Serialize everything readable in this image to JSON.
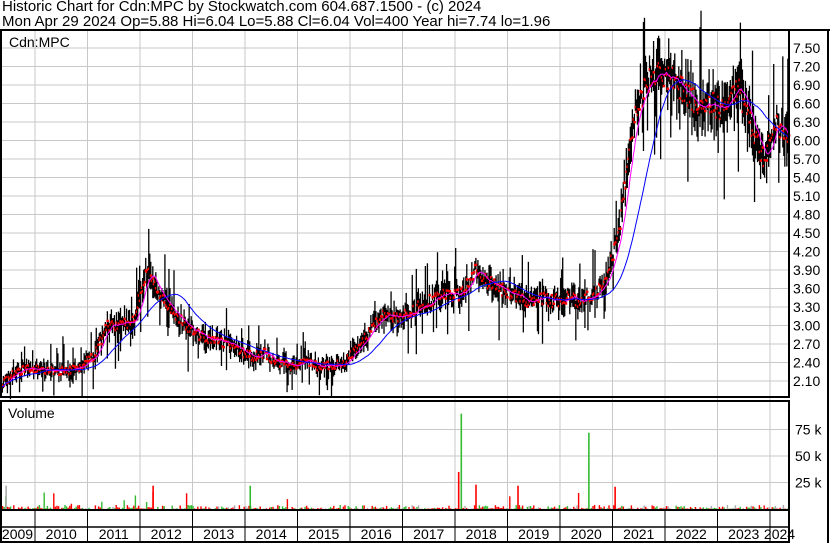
{
  "header": {
    "line1": "Historic Chart for Cdn:MPC by Stockwatch.com 604.687.1500 - (c) 2024",
    "line2": "Mon Apr 29 2024   Op=5.88  Hi=6.04  Lo=5.88  Cl=6.04  Vol=400   Year hi=7.74  lo=1.96"
  },
  "chart_data": [
    {
      "type": "line",
      "panel": "price",
      "label": "Cdn:MPC",
      "ylim": [
        1.9,
        7.75
      ],
      "y_ticks": [
        "7.50",
        "7.20",
        "6.90",
        "6.60",
        "6.30",
        "6.00",
        "5.70",
        "5.40",
        "5.10",
        "4.80",
        "4.50",
        "4.20",
        "3.90",
        "3.60",
        "3.30",
        "3.00",
        "2.70",
        "2.40",
        "2.10"
      ],
      "grid": true,
      "colors": {
        "bars": "#000000",
        "close_marks": "#ff0000",
        "ma_short": "#ff00ff",
        "ma_long": "#0000ff"
      },
      "x_start": 2009.375,
      "x_step_years": 0.25,
      "quarterly_close": [
        2.05,
        2.25,
        2.3,
        2.3,
        2.28,
        2.25,
        2.35,
        2.5,
        3.0,
        3.0,
        3.1,
        3.9,
        3.5,
        3.2,
        3.0,
        2.85,
        2.75,
        2.7,
        2.6,
        2.5,
        2.55,
        2.4,
        2.35,
        2.4,
        2.35,
        2.35,
        2.4,
        2.6,
        2.9,
        3.2,
        3.1,
        3.2,
        3.35,
        3.45,
        3.5,
        3.5,
        3.9,
        3.7,
        3.6,
        3.5,
        3.4,
        3.45,
        3.4,
        3.45,
        3.4,
        3.5,
        3.7,
        4.5,
        6.2,
        6.9,
        7.1,
        7.0,
        6.8,
        6.6,
        6.6,
        6.5,
        6.9,
        6.3,
        5.7,
        6.3,
        6.04
      ]
    },
    {
      "type": "bar",
      "panel": "volume",
      "label": "Volume",
      "ylim": [
        0,
        100000
      ],
      "y_ticks": [
        "75 k",
        "50 k",
        "25 k"
      ],
      "colors": {
        "up": "#33bb33",
        "down": "#ff0000",
        "flat": "#aaaaaa"
      },
      "typical_volume": 3000,
      "spikes": [
        {
          "date": 2009.45,
          "value": 22000,
          "dir": "flat"
        },
        {
          "date": 2012.25,
          "value": 22000,
          "dir": "down"
        },
        {
          "date": 2014.1,
          "value": 22000,
          "dir": "up"
        },
        {
          "date": 2018.07,
          "value": 35000,
          "dir": "down"
        },
        {
          "date": 2018.12,
          "value": 90000,
          "dir": "up"
        },
        {
          "date": 2018.4,
          "value": 23000,
          "dir": "down"
        },
        {
          "date": 2019.2,
          "value": 22000,
          "dir": "down"
        },
        {
          "date": 2020.55,
          "value": 72000,
          "dir": "up"
        },
        {
          "date": 2021.05,
          "value": 21000,
          "dir": "down"
        }
      ]
    }
  ],
  "x_axis": {
    "years": [
      "2009",
      "2010",
      "2011",
      "2012",
      "2013",
      "2014",
      "2015",
      "2016",
      "2017",
      "2018",
      "2019",
      "2020",
      "2021",
      "2022",
      "2023",
      "2024"
    ]
  }
}
